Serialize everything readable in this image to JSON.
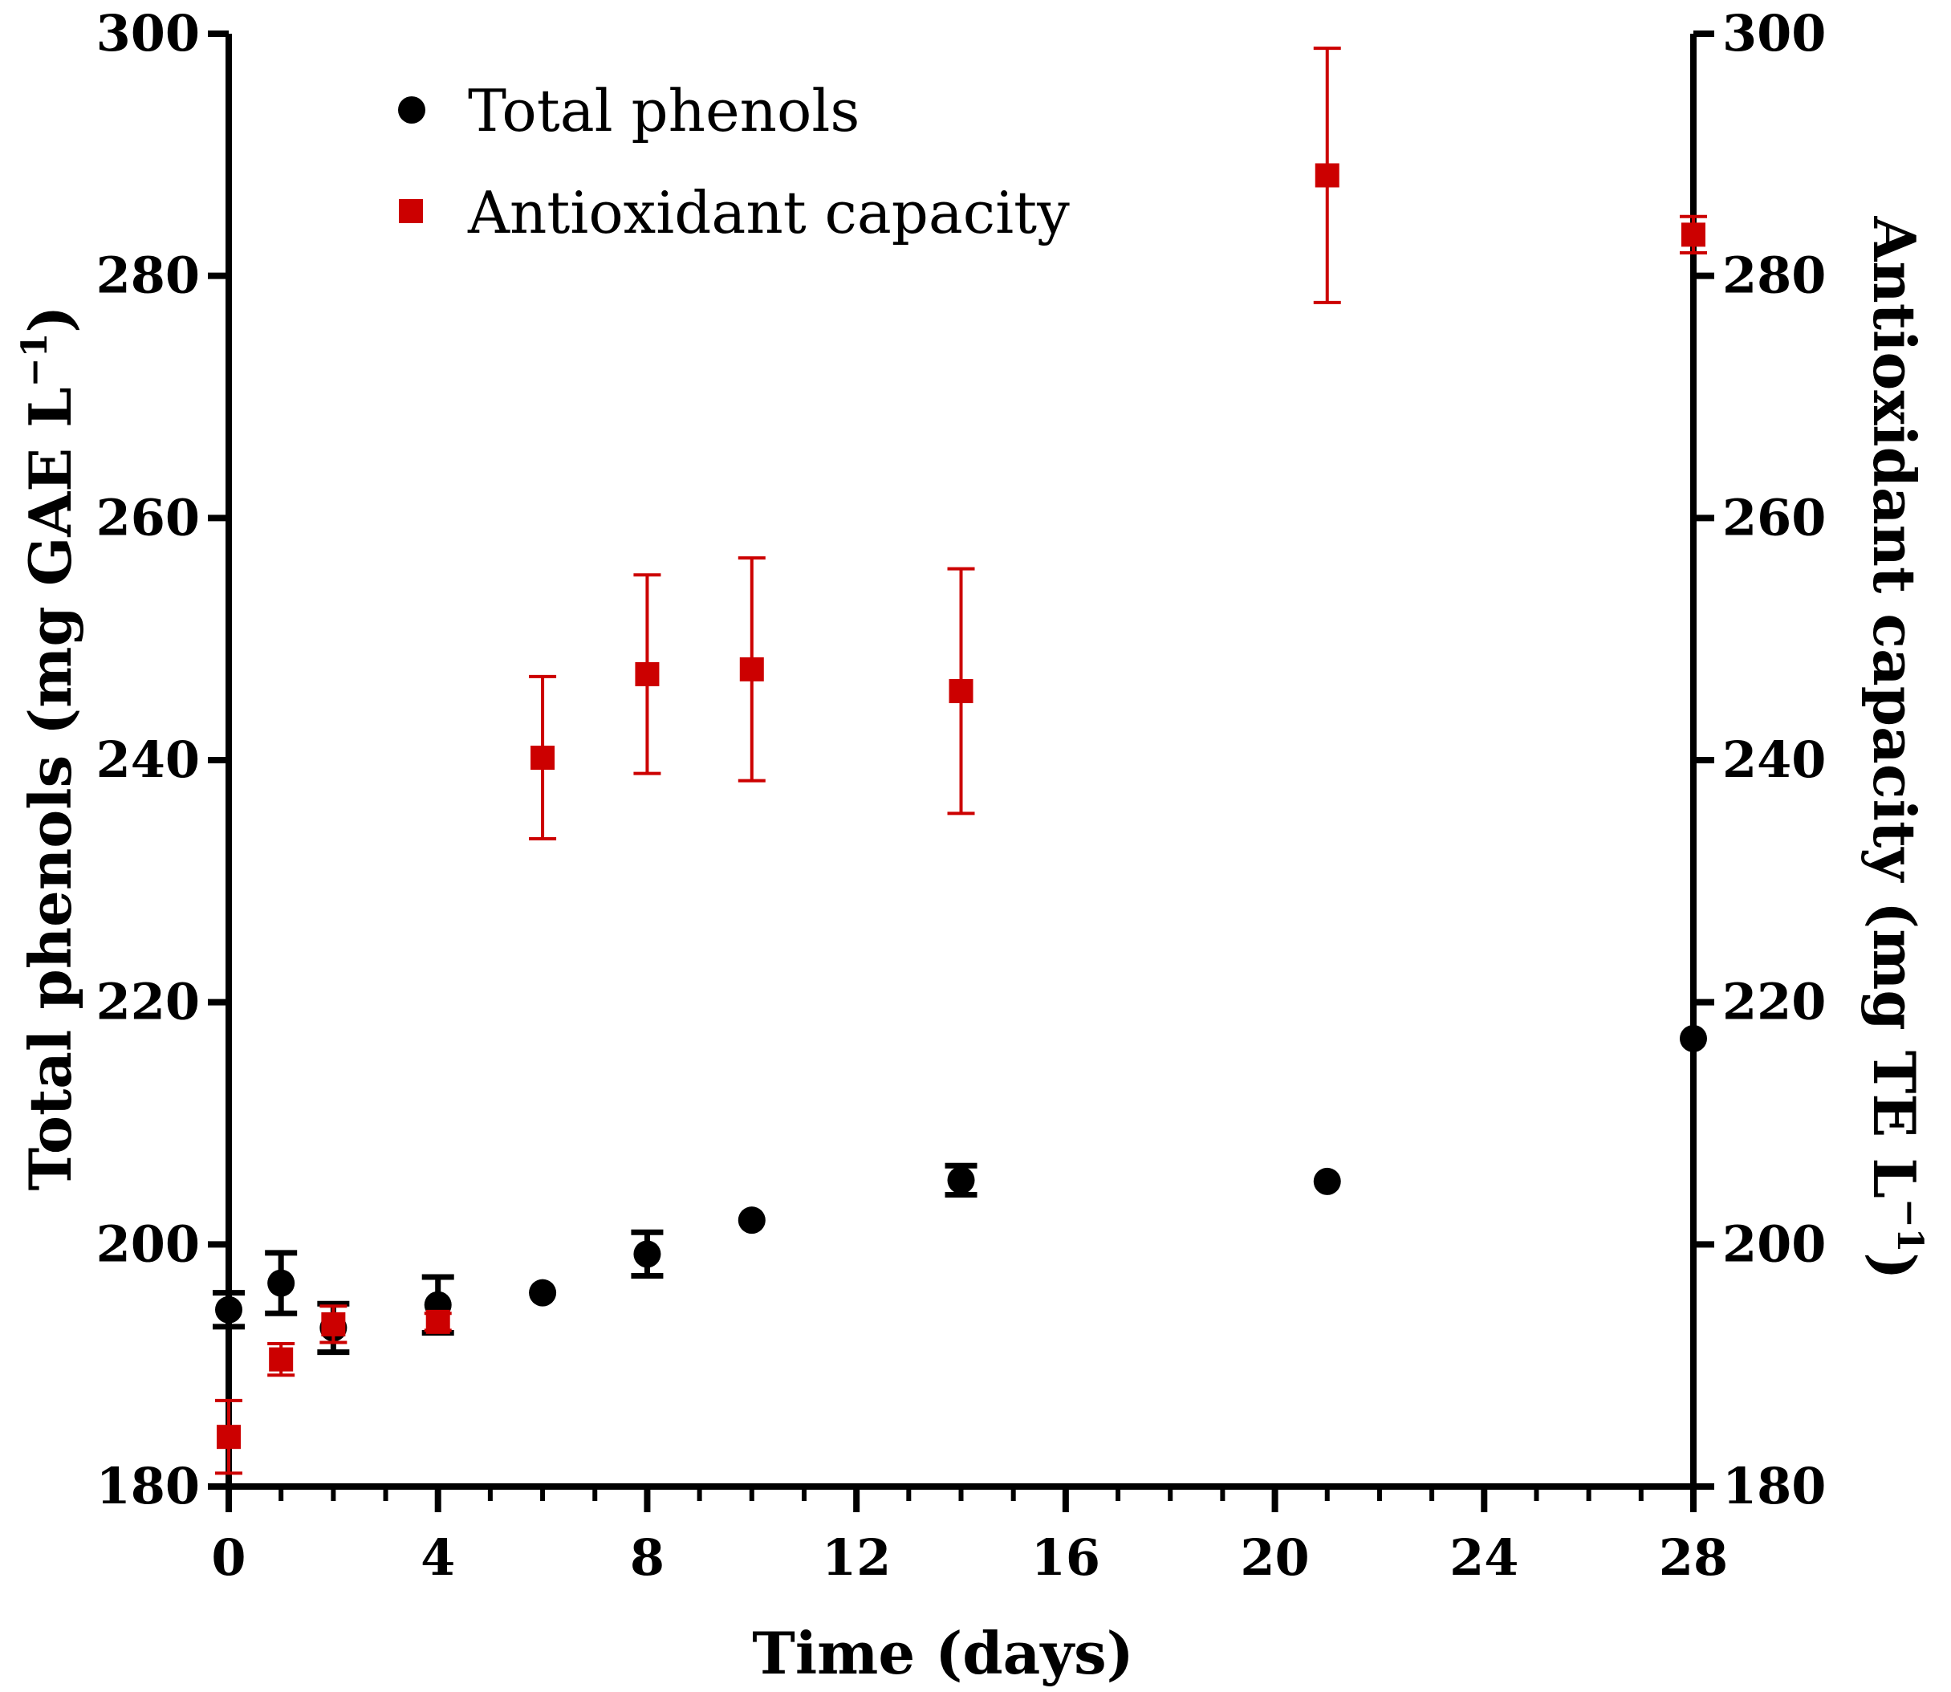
{
  "chart_data": {
    "type": "scatter",
    "x_axis": {
      "label": "Time (days)",
      "range": [
        0,
        28
      ],
      "ticks": [
        0,
        4,
        8,
        12,
        16,
        20,
        24,
        28
      ],
      "tick_labels": [
        "0",
        "4",
        "8",
        "12",
        "16",
        "20",
        "24",
        "28"
      ],
      "minor_tick_step": 1
    },
    "y_axis_left": {
      "label_main": "Total phenols (mg GAE L",
      "label_sup": "−1",
      "label_end": ")",
      "range": [
        180,
        300
      ],
      "ticks": [
        180,
        200,
        220,
        240,
        260,
        280,
        300
      ],
      "tick_labels": [
        "180",
        "200",
        "220",
        "240",
        "260",
        "280",
        "300"
      ]
    },
    "y_axis_right": {
      "label_main": "Antioxidant capacity (mg TE L",
      "label_sup": "−1",
      "label_end": ")",
      "range": [
        180,
        300
      ],
      "ticks": [
        180,
        200,
        220,
        240,
        260,
        280,
        300
      ],
      "tick_labels": [
        "180",
        "200",
        "220",
        "240",
        "260",
        "280",
        "300"
      ]
    },
    "legend_position": "top-left",
    "series": [
      {
        "name": "Total phenols",
        "axis": "left",
        "marker": "circle",
        "color": "#000000",
        "points": [
          {
            "x": 0,
            "y": 194.6,
            "err": 1.4
          },
          {
            "x": 1,
            "y": 196.8,
            "err": 2.5
          },
          {
            "x": 2,
            "y": 193.1,
            "err": 2.0
          },
          {
            "x": 4,
            "y": 195.0,
            "err": 2.3
          },
          {
            "x": 6,
            "y": 196.0,
            "err": 0
          },
          {
            "x": 8,
            "y": 199.2,
            "err": 1.8
          },
          {
            "x": 10,
            "y": 202.0,
            "err": 0
          },
          {
            "x": 14,
            "y": 205.3,
            "err": 1.2
          },
          {
            "x": 21,
            "y": 205.2,
            "err": 0
          },
          {
            "x": 28,
            "y": 217.0,
            "err": 0
          }
        ]
      },
      {
        "name": "Antioxidant capacity",
        "axis": "right",
        "marker": "square",
        "color": "#cc0000",
        "points": [
          {
            "x": 0,
            "y": 184.1,
            "err": 3.0
          },
          {
            "x": 1,
            "y": 190.5,
            "err": 1.3
          },
          {
            "x": 2,
            "y": 193.4,
            "err": 1.5
          },
          {
            "x": 4,
            "y": 193.6,
            "err": 0.7
          },
          {
            "x": 6,
            "y": 240.2,
            "err": 6.7
          },
          {
            "x": 8,
            "y": 247.1,
            "err": 8.2
          },
          {
            "x": 10,
            "y": 247.5,
            "err": 9.2
          },
          {
            "x": 14,
            "y": 245.7,
            "err": 10.1
          },
          {
            "x": 21,
            "y": 288.3,
            "err": 10.5
          },
          {
            "x": 28,
            "y": 283.4,
            "err": 1.5
          }
        ]
      }
    ]
  }
}
